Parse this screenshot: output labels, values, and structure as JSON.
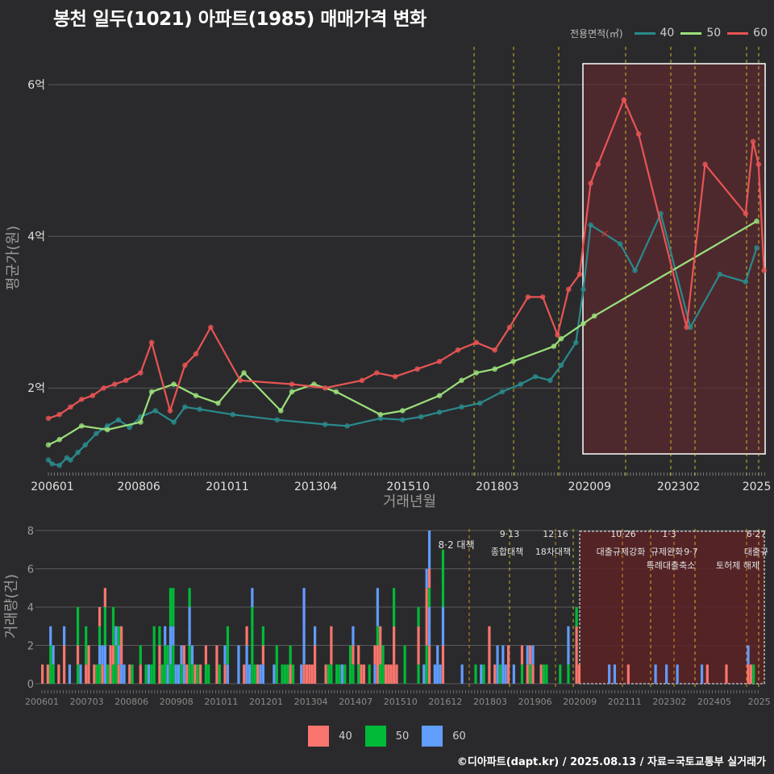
{
  "title": "봉천 일두(1021) 아파트(1985) 매매가격 변화",
  "legend_top": {
    "title": "전용면적(㎡)",
    "items": [
      {
        "label": "40",
        "color": "#2a8a8c"
      },
      {
        "label": "50",
        "color": "#9be07a"
      },
      {
        "label": "60",
        "color": "#e85454"
      }
    ]
  },
  "legend_bottom": {
    "items": [
      {
        "label": "40",
        "color": "#f8766d"
      },
      {
        "label": "50",
        "color": "#00ba38"
      },
      {
        "label": "60",
        "color": "#619cff"
      }
    ]
  },
  "credit": "©디아파트(dapt.kr) / 2025.08.13 / 자료=국토교통부 실거래가",
  "chart_data": [
    {
      "type": "line",
      "ylabel": "평균가(원)",
      "xlabel": "거래년월",
      "ylim": [
        0.95,
        6.5
      ],
      "y_ticks": [
        {
          "v": 2,
          "label": "2억"
        },
        {
          "v": 4,
          "label": "4억"
        },
        {
          "v": 6,
          "label": "6억"
        }
      ],
      "x_ticks": [
        "200601",
        "200806",
        "201011",
        "201304",
        "201510",
        "201803",
        "202009",
        "202302",
        "2025"
      ],
      "series": [
        {
          "name": "40",
          "color": "#2a8a8c",
          "x": [
            2006.0,
            2006.1,
            2006.3,
            2006.5,
            2006.6,
            2006.8,
            2007.0,
            2007.3,
            2007.6,
            2007.9,
            2008.2,
            2008.5,
            2008.9,
            2009.4,
            2009.7,
            2010.1,
            2011.0,
            2012.2,
            2013.5,
            2014.1,
            2015.0,
            2015.6,
            2016.1,
            2016.6,
            2017.2,
            2017.7,
            2018.3,
            2018.8,
            2019.2,
            2019.6,
            2019.9,
            2020.3,
            2020.5,
            2020.7,
            2021.5,
            2021.9,
            2022.6,
            2023.4,
            2024.2,
            2024.9,
            2025.2
          ],
          "values": [
            1.05,
            1.0,
            0.98,
            1.08,
            1.05,
            1.15,
            1.25,
            1.4,
            1.5,
            1.58,
            1.48,
            1.62,
            1.7,
            1.55,
            1.75,
            1.72,
            1.65,
            1.58,
            1.52,
            1.5,
            1.6,
            1.58,
            1.62,
            1.68,
            1.75,
            1.8,
            1.95,
            2.05,
            2.15,
            2.1,
            2.3,
            2.6,
            3.3,
            4.15,
            3.9,
            3.55,
            4.3,
            2.8,
            3.5,
            3.4,
            3.85
          ]
        },
        {
          "name": "50",
          "color": "#9be07a",
          "x": [
            2006.0,
            2006.3,
            2006.9,
            2007.6,
            2008.5,
            2008.8,
            2009.4,
            2010.0,
            2010.6,
            2011.3,
            2012.3,
            2012.6,
            2013.2,
            2013.8,
            2015.0,
            2015.6,
            2016.6,
            2017.2,
            2017.6,
            2018.1,
            2018.6,
            2019.7,
            2019.9,
            2020.5,
            2020.8,
            2025.2
          ],
          "values": [
            1.25,
            1.32,
            1.5,
            1.45,
            1.55,
            1.95,
            2.05,
            1.9,
            1.8,
            2.2,
            1.7,
            1.95,
            2.05,
            1.95,
            1.65,
            1.7,
            1.9,
            2.1,
            2.2,
            2.25,
            2.35,
            2.55,
            2.65,
            2.85,
            2.95,
            4.2
          ]
        },
        {
          "name": "60",
          "color": "#e85454",
          "x": [
            2006.0,
            2006.3,
            2006.6,
            2006.9,
            2007.2,
            2007.5,
            2007.8,
            2008.1,
            2008.5,
            2008.8,
            2009.3,
            2009.7,
            2010.0,
            2010.4,
            2011.2,
            2012.6,
            2013.5,
            2014.5,
            2014.9,
            2015.4,
            2016.0,
            2016.6,
            2017.1,
            2017.6,
            2018.1,
            2018.5,
            2019.0,
            2019.4,
            2019.8,
            2020.1,
            2020.4,
            2020.7,
            2020.9,
            2021.6,
            2022.0,
            2023.3,
            2023.8,
            2024.9,
            2025.1,
            2025.25,
            2025.4
          ],
          "values": [
            1.6,
            1.65,
            1.75,
            1.85,
            1.9,
            2.0,
            2.05,
            2.1,
            2.2,
            2.6,
            1.7,
            2.3,
            2.45,
            2.8,
            2.1,
            2.05,
            2.0,
            2.1,
            2.2,
            2.15,
            2.25,
            2.35,
            2.5,
            2.6,
            2.5,
            2.8,
            3.2,
            3.2,
            2.7,
            3.3,
            3.5,
            4.7,
            4.95,
            5.8,
            5.35,
            2.8,
            4.95,
            4.3,
            5.25,
            4.95,
            3.55
          ]
        }
      ]
    },
    {
      "type": "bar",
      "ylabel": "거래량(건)",
      "ylim": [
        0,
        8
      ],
      "y_ticks": [
        0,
        2,
        4,
        6,
        8
      ],
      "x_ticks": [
        "200601",
        "200703",
        "200806",
        "200908",
        "201011",
        "201201",
        "201304",
        "201407",
        "201510",
        "201612",
        "201803",
        "201906",
        "202009",
        "202111",
        "202302",
        "202405",
        "2025"
      ],
      "annotations": [
        {
          "date": "8·2",
          "label": "대책"
        },
        {
          "date": "9·13",
          "label": "종합대책"
        },
        {
          "date": "12·16",
          "label": "18차대책"
        },
        {
          "date": "10·26",
          "label": "대출규제강화"
        },
        {
          "date": "1·3",
          "label": "규제완화"
        },
        {
          "date": "9·7",
          "label": "특례대출축소"
        },
        {
          "date": "6·27",
          "label": "대출규"
        }
      ],
      "annotation_extra": "토허제 해제"
    }
  ]
}
